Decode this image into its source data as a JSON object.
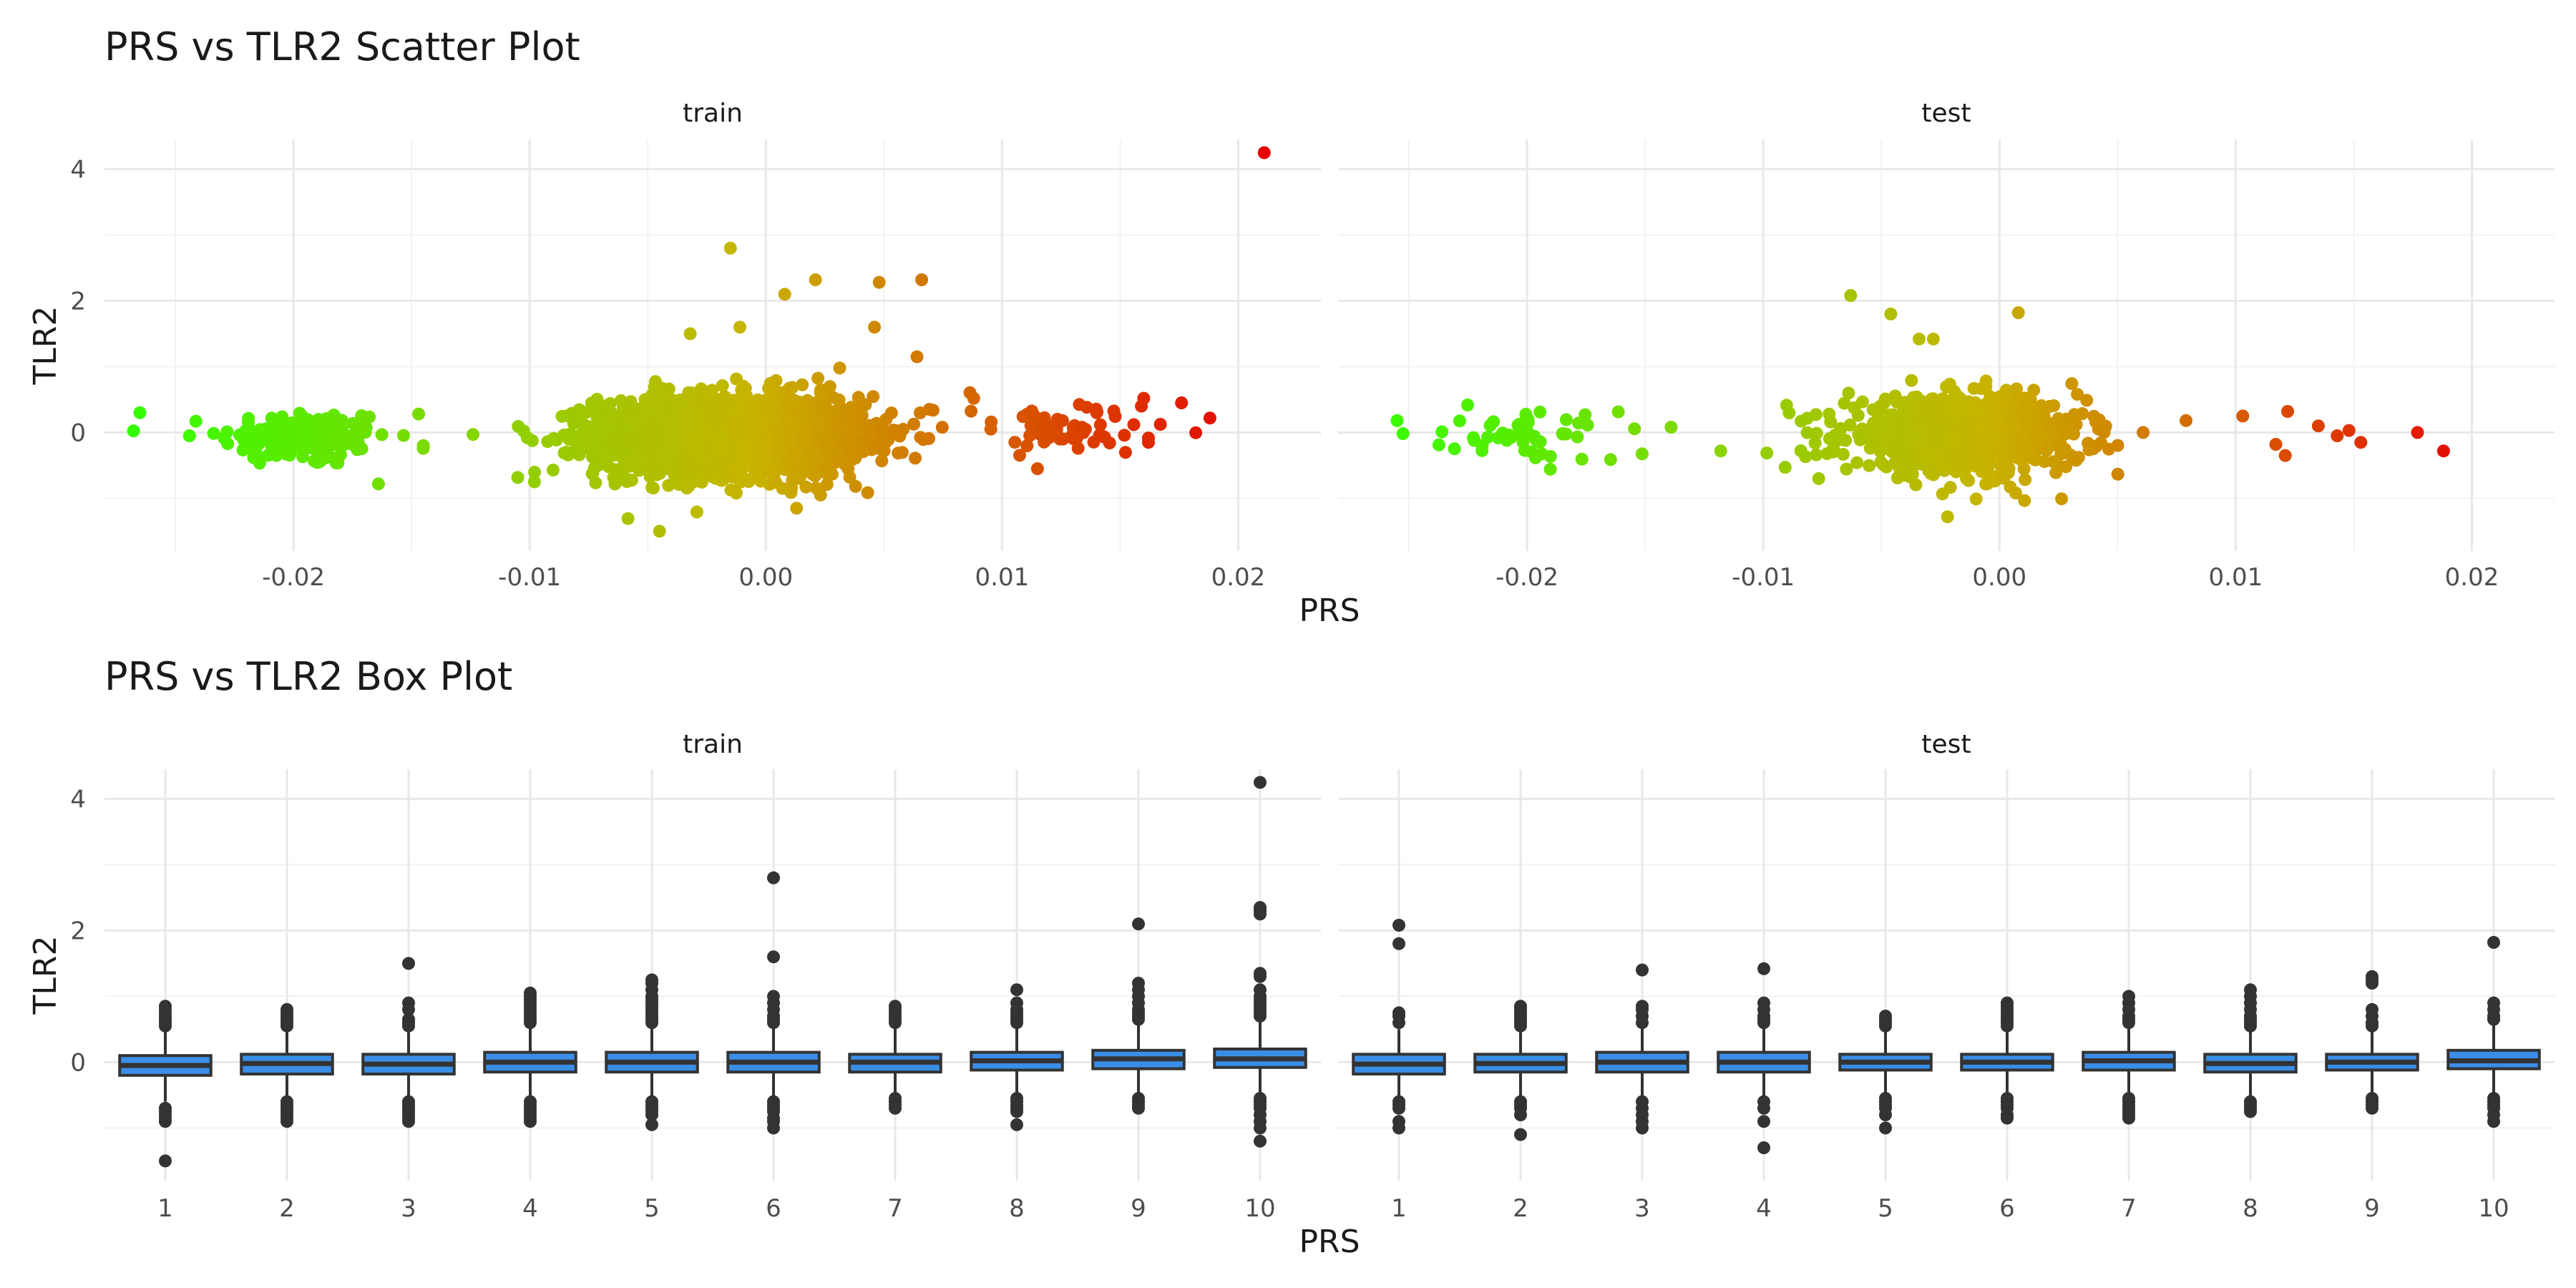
{
  "chart_data": [
    {
      "type": "scatter",
      "title": "PRS vs TLR2 Scatter Plot",
      "xlabel": "PRS",
      "ylabel": "TLR2",
      "xlim": [
        -0.028,
        0.0235
      ],
      "ylim": [
        -1.8,
        4.45
      ],
      "x_ticks": [
        -0.02,
        -0.01,
        0.0,
        0.01,
        0.02
      ],
      "x_tick_labels": [
        "-0.02",
        "-0.01",
        "0.00",
        "0.01",
        "0.02"
      ],
      "y_ticks": [
        0,
        2,
        4
      ],
      "y_tick_labels": [
        "0",
        "2",
        "4"
      ],
      "grid": true,
      "color_gradient": {
        "low": "#33ff00",
        "mid": "#c8b400",
        "high": "#e60000",
        "domain": [
          -0.027,
          0.021
        ]
      },
      "panels": [
        {
          "name": "train",
          "clusters": [
            {
              "center_x": -0.0195,
              "sd_x": 0.0018,
              "center_y": -0.08,
              "sd_y": 0.22,
              "n": 150
            },
            {
              "center_x": -0.0015,
              "sd_x": 0.0028,
              "center_y": -0.05,
              "sd_y": 0.3,
              "n": 2200
            },
            {
              "center_x": 0.0125,
              "sd_x": 0.0025,
              "center_y": 0.02,
              "sd_y": 0.2,
              "n": 60
            }
          ],
          "points": [
            {
              "x": -0.0265,
              "y": 0.3
            },
            {
              "x": -0.0244,
              "y": -0.05
            },
            {
              "x": -0.0124,
              "y": -0.03
            },
            {
              "x": -0.0101,
              "y": -0.08
            },
            {
              "x": -0.0098,
              "y": -0.75
            },
            {
              "x": -0.0164,
              "y": -0.78
            },
            {
              "x": -0.0147,
              "y": 0.28
            },
            {
              "x": -0.0145,
              "y": -0.2
            },
            {
              "x": -0.0015,
              "y": 2.8
            },
            {
              "x": 0.0021,
              "y": 2.32
            },
            {
              "x": 0.0048,
              "y": 2.28
            },
            {
              "x": 0.0066,
              "y": 2.32
            },
            {
              "x": 0.0008,
              "y": 2.1
            },
            {
              "x": -0.0011,
              "y": 1.6
            },
            {
              "x": -0.0032,
              "y": 1.5
            },
            {
              "x": 0.0046,
              "y": 1.6
            },
            {
              "x": 0.0064,
              "y": 1.15
            },
            {
              "x": -0.0045,
              "y": -1.5
            },
            {
              "x": 0.0038,
              "y": -0.82
            },
            {
              "x": 0.0013,
              "y": -1.15
            },
            {
              "x": 0.0211,
              "y": 4.25
            },
            {
              "x": 0.0188,
              "y": 0.22
            },
            {
              "x": 0.0176,
              "y": 0.45
            },
            {
              "x": 0.016,
              "y": 0.52
            },
            {
              "x": 0.0159,
              "y": 0.4
            },
            {
              "x": 0.0162,
              "y": -0.15
            },
            {
              "x": 0.0115,
              "y": -0.55
            },
            {
              "x": 0.0088,
              "y": 0.52
            }
          ]
        },
        {
          "name": "test",
          "clusters": [
            {
              "center_x": -0.0197,
              "sd_x": 0.0018,
              "center_y": -0.06,
              "sd_y": 0.2,
              "n": 55
            },
            {
              "center_x": -0.0015,
              "sd_x": 0.0025,
              "center_y": -0.05,
              "sd_y": 0.28,
              "n": 900
            }
          ],
          "points": [
            {
              "x": -0.0255,
              "y": 0.18
            },
            {
              "x": -0.0139,
              "y": 0.08
            },
            {
              "x": -0.0118,
              "y": -0.28
            },
            {
              "x": -0.0063,
              "y": 2.08
            },
            {
              "x": -0.0046,
              "y": 1.8
            },
            {
              "x": 0.0008,
              "y": 1.82
            },
            {
              "x": -0.0034,
              "y": 1.42
            },
            {
              "x": -0.0028,
              "y": 1.42
            },
            {
              "x": -0.0022,
              "y": -1.28
            },
            {
              "x": 0.0103,
              "y": 0.25
            },
            {
              "x": 0.0117,
              "y": -0.18
            },
            {
              "x": 0.0122,
              "y": 0.32
            },
            {
              "x": 0.0135,
              "y": 0.1
            },
            {
              "x": 0.0148,
              "y": 0.03
            },
            {
              "x": 0.0153,
              "y": -0.15
            },
            {
              "x": 0.0177,
              "y": 0.0
            },
            {
              "x": 0.0188,
              "y": -0.28
            },
            {
              "x": 0.0121,
              "y": -0.35
            },
            {
              "x": 0.0143,
              "y": -0.05
            },
            {
              "x": 0.0079,
              "y": 0.18
            }
          ]
        }
      ]
    },
    {
      "type": "box",
      "title": "PRS vs TLR2 Box Plot",
      "xlabel": "PRS",
      "ylabel": "TLR2",
      "categories": [
        "1",
        "2",
        "3",
        "4",
        "5",
        "6",
        "7",
        "8",
        "9",
        "10"
      ],
      "ylim": [
        -1.8,
        4.45
      ],
      "y_ticks": [
        0,
        2,
        4
      ],
      "y_tick_labels": [
        "0",
        "2",
        "4"
      ],
      "fill_color": "#3a8ee6",
      "grid": true,
      "panels": [
        {
          "name": "train",
          "boxes": [
            {
              "q1": -0.2,
              "median": -0.05,
              "q3": 0.1,
              "whisker_low": -0.6,
              "whisker_high": 0.5,
              "outliers": [
                0.55,
                0.6,
                0.65,
                0.7,
                0.75,
                0.8,
                0.85,
                -0.7,
                -0.75,
                -0.8,
                -0.85,
                -0.9,
                -1.5
              ]
            },
            {
              "q1": -0.18,
              "median": -0.02,
              "q3": 0.12,
              "whisker_low": -0.55,
              "whisker_high": 0.5,
              "outliers": [
                0.55,
                0.6,
                0.65,
                0.7,
                0.75,
                0.8,
                -0.6,
                -0.65,
                -0.7,
                -0.75,
                -0.8,
                -0.85,
                -0.9
              ]
            },
            {
              "q1": -0.18,
              "median": -0.03,
              "q3": 0.12,
              "whisker_low": -0.55,
              "whisker_high": 0.5,
              "outliers": [
                0.55,
                0.6,
                0.65,
                0.8,
                0.9,
                1.5,
                -0.6,
                -0.65,
                -0.7,
                -0.75,
                -0.8,
                -0.85,
                -0.9
              ]
            },
            {
              "q1": -0.15,
              "median": 0.0,
              "q3": 0.15,
              "whisker_low": -0.55,
              "whisker_high": 0.55,
              "outliers": [
                0.6,
                0.65,
                0.7,
                0.75,
                0.8,
                0.85,
                0.9,
                0.95,
                1.0,
                1.05,
                -0.6,
                -0.65,
                -0.7,
                -0.75,
                -0.8,
                -0.85,
                -0.9
              ]
            },
            {
              "q1": -0.15,
              "median": 0.0,
              "q3": 0.15,
              "whisker_low": -0.55,
              "whisker_high": 0.55,
              "outliers": [
                0.6,
                0.65,
                0.7,
                0.75,
                0.8,
                0.85,
                0.9,
                0.95,
                1.0,
                1.1,
                1.2,
                1.25,
                -0.6,
                -0.65,
                -0.7,
                -0.75,
                -0.8,
                -0.95
              ]
            },
            {
              "q1": -0.15,
              "median": 0.0,
              "q3": 0.15,
              "whisker_low": -0.55,
              "whisker_high": 0.55,
              "outliers": [
                0.6,
                0.65,
                0.7,
                0.8,
                0.9,
                1.0,
                1.6,
                2.8,
                -0.6,
                -0.65,
                -0.7,
                -0.75,
                -0.85,
                -0.9,
                -1.0
              ]
            },
            {
              "q1": -0.15,
              "median": 0.0,
              "q3": 0.12,
              "whisker_low": -0.5,
              "whisker_high": 0.55,
              "outliers": [
                0.6,
                0.65,
                0.7,
                0.75,
                0.8,
                0.85,
                -0.55,
                -0.6,
                -0.65,
                -0.7
              ]
            },
            {
              "q1": -0.12,
              "median": 0.02,
              "q3": 0.15,
              "whisker_low": -0.5,
              "whisker_high": 0.55,
              "outliers": [
                0.6,
                0.65,
                0.7,
                0.75,
                0.8,
                0.9,
                1.1,
                -0.55,
                -0.6,
                -0.65,
                -0.7,
                -0.75,
                -0.95
              ]
            },
            {
              "q1": -0.1,
              "median": 0.05,
              "q3": 0.18,
              "whisker_low": -0.5,
              "whisker_high": 0.6,
              "outliers": [
                0.65,
                0.7,
                0.75,
                0.8,
                0.9,
                1.0,
                1.1,
                1.2,
                2.1,
                -0.55,
                -0.6,
                -0.65,
                -0.7
              ]
            },
            {
              "q1": -0.08,
              "median": 0.05,
              "q3": 0.2,
              "whisker_low": -0.5,
              "whisker_high": 0.65,
              "outliers": [
                0.7,
                0.75,
                0.8,
                0.85,
                0.9,
                0.95,
                1.0,
                1.1,
                1.3,
                1.35,
                2.25,
                2.3,
                2.35,
                4.25,
                -0.55,
                -0.6,
                -0.65,
                -0.7,
                -0.8,
                -0.9,
                -1.0,
                -1.2
              ]
            }
          ]
        },
        {
          "name": "test",
          "boxes": [
            {
              "q1": -0.18,
              "median": -0.03,
              "q3": 0.12,
              "whisker_low": -0.55,
              "whisker_high": 0.5,
              "outliers": [
                0.6,
                0.7,
                0.75,
                1.8,
                2.08,
                -0.6,
                -0.65,
                -0.7,
                -0.9,
                -1.0
              ]
            },
            {
              "q1": -0.15,
              "median": -0.02,
              "q3": 0.12,
              "whisker_low": -0.55,
              "whisker_high": 0.5,
              "outliers": [
                0.55,
                0.6,
                0.65,
                0.7,
                0.75,
                0.8,
                0.85,
                -0.6,
                -0.65,
                -0.7,
                -0.8,
                -1.1
              ]
            },
            {
              "q1": -0.15,
              "median": 0.0,
              "q3": 0.15,
              "whisker_low": -0.55,
              "whisker_high": 0.55,
              "outliers": [
                0.6,
                0.7,
                0.8,
                0.85,
                1.4,
                -0.6,
                -0.7,
                -0.8,
                -0.9,
                -1.0
              ]
            },
            {
              "q1": -0.15,
              "median": 0.0,
              "q3": 0.15,
              "whisker_low": -0.55,
              "whisker_high": 0.55,
              "outliers": [
                0.6,
                0.65,
                0.7,
                0.8,
                0.9,
                1.42,
                -0.6,
                -0.7,
                -0.9,
                -1.3
              ]
            },
            {
              "q1": -0.12,
              "median": 0.0,
              "q3": 0.12,
              "whisker_low": -0.5,
              "whisker_high": 0.5,
              "outliers": [
                0.55,
                0.6,
                0.65,
                0.7,
                -0.55,
                -0.6,
                -0.65,
                -0.7,
                -0.8,
                -1.0
              ]
            },
            {
              "q1": -0.12,
              "median": 0.0,
              "q3": 0.12,
              "whisker_low": -0.5,
              "whisker_high": 0.5,
              "outliers": [
                0.55,
                0.6,
                0.65,
                0.7,
                0.75,
                0.8,
                0.85,
                0.9,
                -0.55,
                -0.6,
                -0.65,
                -0.7,
                -0.8,
                -0.85
              ]
            },
            {
              "q1": -0.12,
              "median": 0.02,
              "q3": 0.15,
              "whisker_low": -0.5,
              "whisker_high": 0.55,
              "outliers": [
                0.6,
                0.65,
                0.7,
                0.8,
                0.9,
                1.0,
                -0.55,
                -0.6,
                -0.65,
                -0.7,
                -0.75,
                -0.8,
                -0.85
              ]
            },
            {
              "q1": -0.15,
              "median": -0.02,
              "q3": 0.12,
              "whisker_low": -0.55,
              "whisker_high": 0.5,
              "outliers": [
                0.55,
                0.6,
                0.65,
                0.7,
                0.8,
                0.9,
                1.0,
                1.1,
                -0.6,
                -0.65,
                -0.7,
                -0.75
              ]
            },
            {
              "q1": -0.12,
              "median": 0.0,
              "q3": 0.12,
              "whisker_low": -0.5,
              "whisker_high": 0.5,
              "outliers": [
                0.55,
                0.6,
                0.7,
                0.8,
                1.2,
                1.25,
                1.3,
                -0.55,
                -0.6,
                -0.65,
                -0.7
              ]
            },
            {
              "q1": -0.1,
              "median": 0.02,
              "q3": 0.18,
              "whisker_low": -0.5,
              "whisker_high": 0.6,
              "outliers": [
                0.65,
                0.7,
                0.8,
                0.9,
                1.82,
                -0.55,
                -0.6,
                -0.65,
                -0.7,
                -0.8,
                -0.9
              ]
            }
          ]
        }
      ]
    }
  ]
}
